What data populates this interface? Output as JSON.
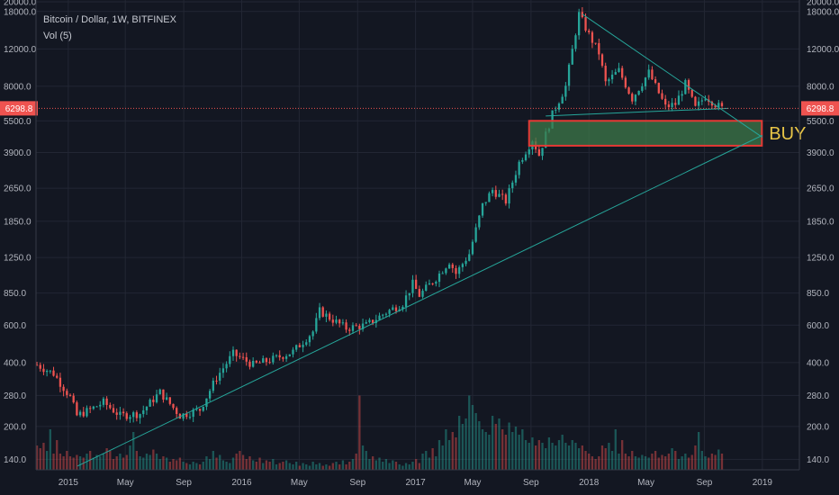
{
  "header": {
    "symbol_line": "Bitcoin / Dollar, 1W, BITFINEX",
    "volume_line": "Vol (5)"
  },
  "colors": {
    "background": "#131722",
    "grid": "#232734",
    "up": "#26a69a",
    "down": "#ef5350",
    "trendline": "#26a69a",
    "zone_fill": "#3d7a4a",
    "zone_border": "#e53935",
    "buy_text": "#e8c547",
    "price_line": "#ef5350"
  },
  "chart_data": {
    "type": "candlestick",
    "title": "Bitcoin / Dollar, 1W, BITFINEX",
    "xlabel": "",
    "ylabel": "",
    "scale": "log",
    "ylim": [
      125,
      20000
    ],
    "xlim": [
      "2014-10-25",
      "2019-03-20"
    ],
    "y_ticks": [
      140,
      200,
      280,
      400,
      600,
      850,
      1250,
      1850,
      2650,
      3900,
      5500,
      8000,
      12000,
      18000,
      20000
    ],
    "y_tick_labels": [
      "140.0",
      "200.0",
      "280.0",
      "400.0",
      "600.0",
      "850.0",
      "1250.0",
      "1850.0",
      "2650.0",
      "3900.0",
      "5500.0",
      "8000.0",
      "12000.0",
      "18000.0",
      "20000.0"
    ],
    "x_ticks": [
      "2015-01-01",
      "2015-05-01",
      "2015-09-01",
      "2016-01-01",
      "2016-05-01",
      "2016-09-01",
      "2017-01-01",
      "2017-05-01",
      "2017-09-01",
      "2018-01-01",
      "2018-05-01",
      "2018-09-01",
      "2019-01-01"
    ],
    "x_tick_labels": [
      "2015",
      "May",
      "Sep",
      "2016",
      "May",
      "Sep",
      "2017",
      "May",
      "Sep",
      "2018",
      "May",
      "Sep",
      "2019"
    ],
    "current_price": 6298.8,
    "current_price_label": "6298.8",
    "close_series": {
      "dates": [
        "2014-10-27",
        "2014-12-01",
        "2015-01-05",
        "2015-01-19",
        "2015-02-16",
        "2015-03-16",
        "2015-04-20",
        "2015-06-01",
        "2015-07-13",
        "2015-08-24",
        "2015-10-05",
        "2015-11-09",
        "2015-12-14",
        "2016-01-25",
        "2016-03-07",
        "2016-04-18",
        "2016-05-30",
        "2016-06-13",
        "2016-07-04",
        "2016-08-08",
        "2016-09-19",
        "2016-10-31",
        "2016-12-05",
        "2016-12-26",
        "2017-01-09",
        "2017-02-13",
        "2017-03-13",
        "2017-03-27",
        "2017-04-24",
        "2017-05-22",
        "2017-06-12",
        "2017-07-10",
        "2017-08-07",
        "2017-09-04",
        "2017-09-18",
        "2017-10-16",
        "2017-11-13",
        "2017-12-11",
        "2018-01-01",
        "2018-01-22",
        "2018-02-05",
        "2018-03-05",
        "2018-04-02",
        "2018-05-07",
        "2018-06-11",
        "2018-07-02",
        "2018-07-23",
        "2018-08-13",
        "2018-09-03",
        "2018-09-24",
        "2018-10-08"
      ],
      "close": [
        390,
        355,
        275,
        225,
        240,
        260,
        225,
        230,
        290,
        225,
        240,
        340,
        440,
        390,
        415,
        450,
        560,
        700,
        650,
        580,
        600,
        690,
        760,
        940,
        830,
        1000,
        1200,
        1050,
        1300,
        2200,
        2600,
        2300,
        3500,
        4500,
        3800,
        5900,
        8000,
        17500,
        14000,
        11500,
        8300,
        9500,
        7000,
        9300,
        6400,
        6600,
        8200,
        6300,
        7200,
        6600,
        6300
      ]
    },
    "volume": {
      "note": "relative weekly volume, scaled 0-100",
      "values": [
        18,
        16,
        20,
        14,
        30,
        12,
        22,
        12,
        10,
        14,
        10,
        9,
        11,
        10,
        9,
        12,
        14,
        9,
        11,
        10,
        12,
        16,
        14,
        8,
        10,
        12,
        9,
        11,
        18,
        28,
        14,
        10,
        9,
        12,
        11,
        15,
        12,
        8,
        10,
        9,
        6,
        8,
        7,
        9,
        6,
        5,
        4,
        6,
        5,
        4,
        6,
        10,
        8,
        14,
        9,
        11,
        7,
        6,
        5,
        9,
        12,
        14,
        11,
        8,
        10,
        7,
        6,
        9,
        5,
        7,
        6,
        8,
        4,
        5,
        6,
        7,
        5,
        4,
        6,
        3,
        5,
        4,
        3,
        6,
        4,
        5,
        3,
        4,
        3,
        5,
        6,
        4,
        7,
        4,
        6,
        8,
        12,
        55,
        18,
        14,
        8,
        10,
        7,
        9,
        6,
        8,
        5,
        7,
        6,
        4,
        3,
        5,
        4,
        6,
        8,
        5,
        12,
        14,
        9,
        16,
        10,
        22,
        18,
        30,
        22,
        28,
        24,
        40,
        34,
        38,
        55,
        48,
        42,
        36,
        30,
        28,
        26,
        40,
        34,
        38,
        30,
        26,
        35,
        28,
        32,
        26,
        30,
        22,
        20,
        24,
        18,
        22,
        20,
        16,
        24,
        20,
        18,
        22,
        26,
        20,
        18,
        22,
        20,
        16,
        18,
        14,
        12,
        10,
        8,
        10
      ]
    },
    "trendlines": [
      {
        "name": "descending resistance",
        "points": [
          [
            "2017-12-18",
            17500
          ],
          [
            "2019-01-01",
            4600
          ]
        ]
      },
      {
        "name": "flat support",
        "points": [
          [
            "2017-10-02",
            5800
          ],
          [
            "2018-10-22",
            6300
          ]
        ]
      },
      {
        "name": "long-term ascending support",
        "points": [
          [
            "2015-01-20",
            130
          ],
          [
            "2019-01-01",
            4700
          ]
        ]
      }
    ],
    "zone": {
      "from": "2017-08-28",
      "to": "2018-12-31",
      "low": 4200,
      "high": 5500,
      "label": "BUY"
    }
  }
}
